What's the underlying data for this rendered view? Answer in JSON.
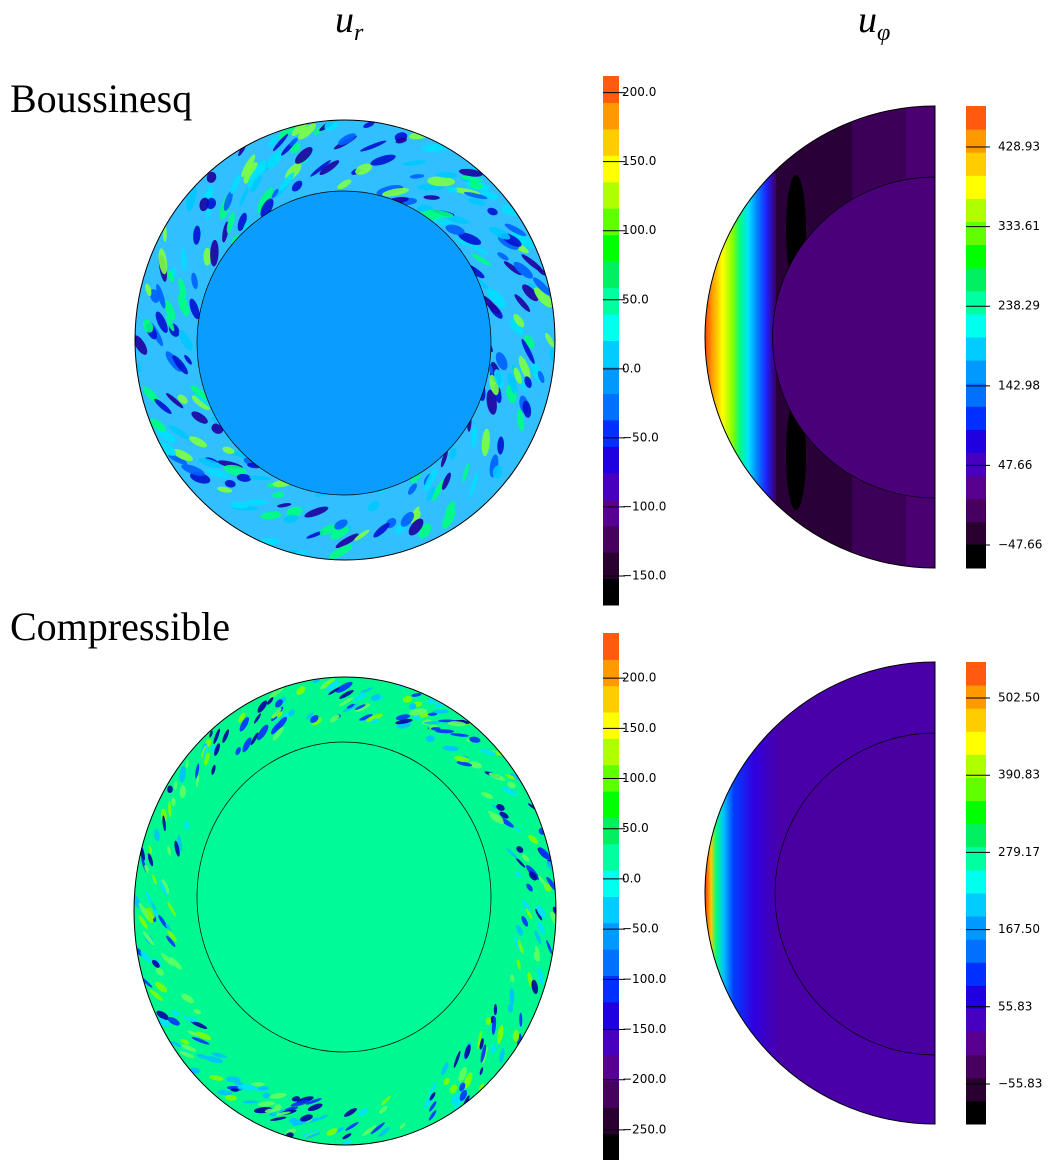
{
  "column_titles": [
    {
      "symbol": "u",
      "subscript": "r"
    },
    {
      "symbol": "u",
      "subscript": "φ"
    }
  ],
  "colormap": [
    "#000000",
    "#2a0030",
    "#480060",
    "#5a0090",
    "#4800c0",
    "#2000e0",
    "#0030ff",
    "#0070ff",
    "#0099ff",
    "#00ccff",
    "#00ffee",
    "#00ffa0",
    "#00f060",
    "#00ff00",
    "#60ff00",
    "#b0ff00",
    "#ffff00",
    "#ffcc00",
    "#ff9900",
    "#ff5a10"
  ],
  "rows": [
    {
      "label": "Boussinesq",
      "colorbars": [
        {
          "range": [
            -171,
            212
          ],
          "ticks": [
            {
              "value": 200,
              "label": "200.0"
            },
            {
              "value": 150,
              "label": "150.0"
            },
            {
              "value": 100,
              "label": "100.0"
            },
            {
              "value": 50,
              "label": "50.0"
            },
            {
              "value": 0,
              "label": "0.0"
            },
            {
              "value": -50,
              "label": "−50.0"
            },
            {
              "value": -100,
              "label": "−100.0"
            },
            {
              "value": -150,
              "label": "−150.0"
            }
          ]
        },
        {
          "range": [
            -75.2,
            478.1
          ],
          "ticks": [
            428.93,
            333.61,
            238.29,
            142.98,
            47.66,
            {
              "value": -47.66,
              "label": "−47.66"
            }
          ]
        }
      ]
    },
    {
      "label": "Compressible",
      "colorbars": [
        {
          "range": [
            -280,
            245
          ],
          "ticks": [
            {
              "value": 200,
              "label": "200.0"
            },
            {
              "value": 150,
              "label": "150.0"
            },
            {
              "value": 100,
              "label": "100.0"
            },
            {
              "value": 50,
              "label": "50.0"
            },
            {
              "value": 0,
              "label": "0.0"
            },
            {
              "value": -50,
              "label": "−50.0"
            },
            {
              "value": -100,
              "label": "−100.0"
            },
            {
              "value": -150,
              "label": "−150.0"
            },
            {
              "value": -200,
              "label": "−200.0"
            },
            {
              "value": -250,
              "label": "−250.0"
            }
          ]
        },
        {
          "range": [
            -113.7,
            554.6
          ],
          "ticks": [
            {
              "value": 502.5,
              "label": "502.50"
            },
            390.83,
            279.17,
            {
              "value": 167.5,
              "label": "167.50"
            },
            55.83,
            {
              "value": -55.83,
              "label": "−55.83"
            }
          ]
        }
      ]
    }
  ]
}
